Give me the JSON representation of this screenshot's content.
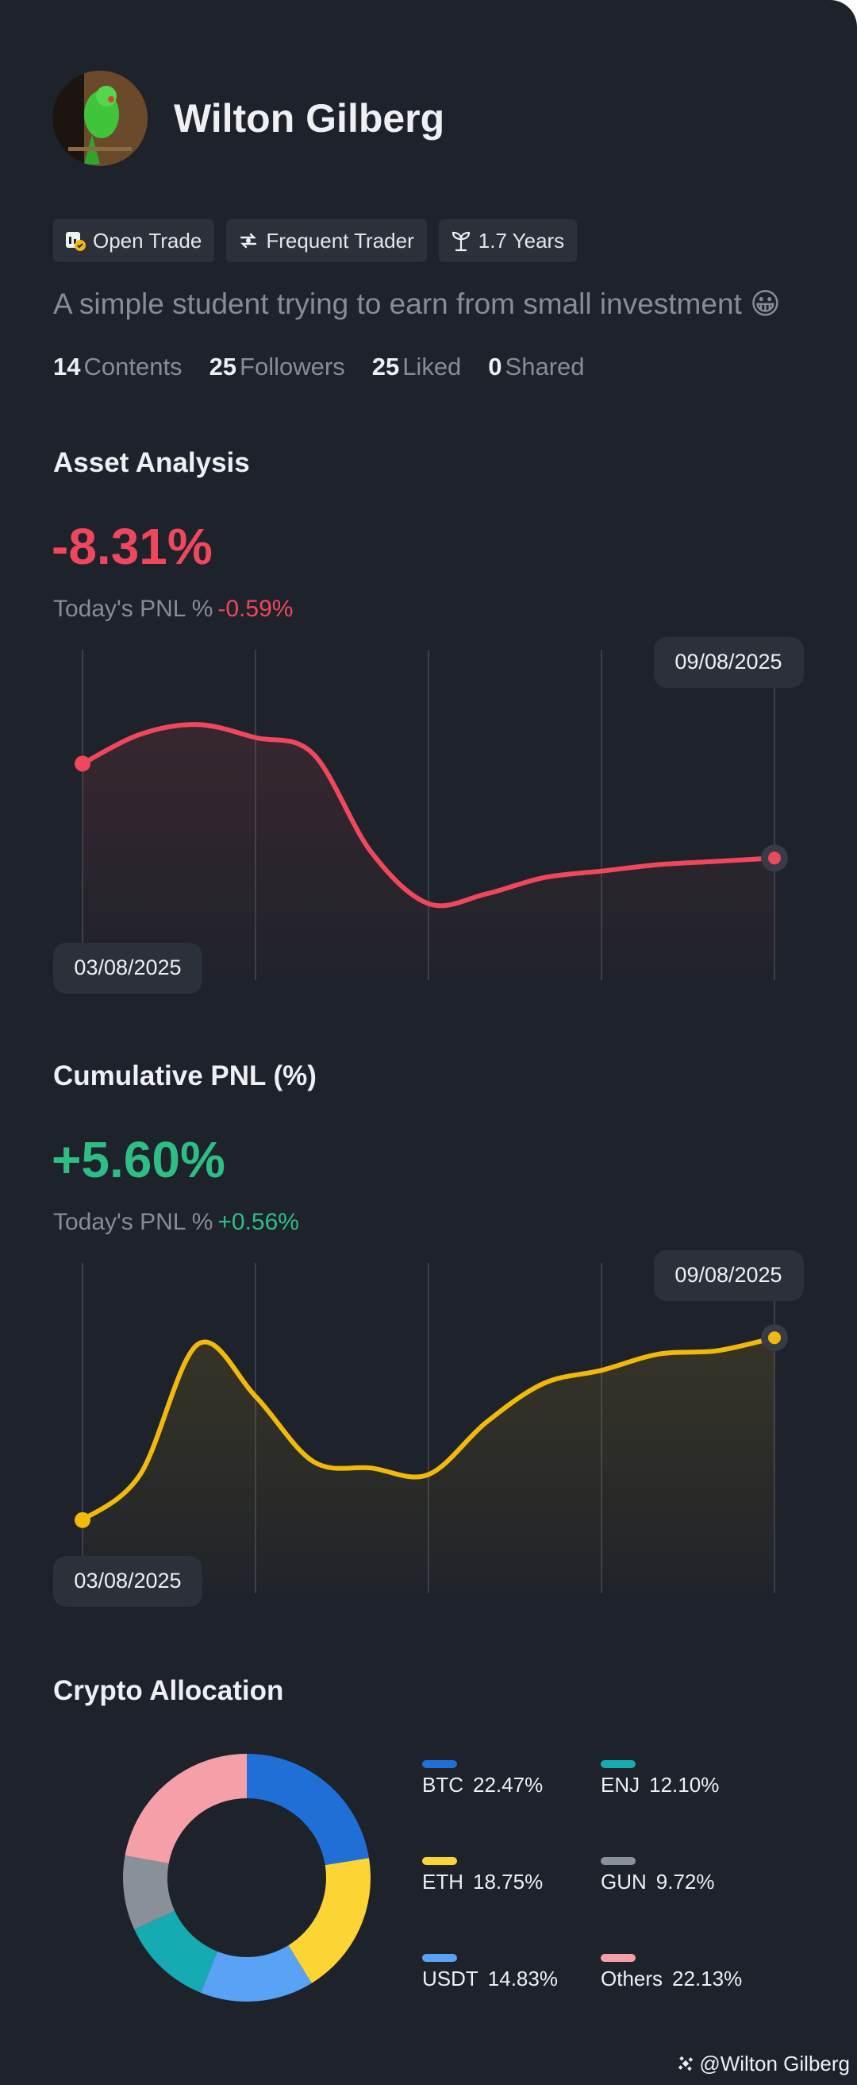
{
  "profile": {
    "name": "Wilton Gilberg",
    "badges": [
      "Open Trade",
      "Frequent Trader",
      "1.7 Years"
    ],
    "bio": "A simple student trying to earn from small investment 😀",
    "stats": [
      {
        "count": 14,
        "label": "Contents"
      },
      {
        "count": 25,
        "label": "Followers"
      },
      {
        "count": 25,
        "label": "Liked"
      },
      {
        "count": 0,
        "label": "Shared"
      }
    ]
  },
  "sections": [
    {
      "title": "Asset Analysis",
      "headline": "-8.31%",
      "pnl_label": "Today's PNL %",
      "pnl_value": "-0.59%",
      "accent": "#f0475c",
      "chart_data": {
        "type": "line",
        "categories": [
          "03/08/2025",
          null,
          null,
          null,
          null,
          null,
          null,
          null,
          null,
          null,
          null,
          null,
          "09/08/2025"
        ],
        "series": [
          {
            "color": "#f0475c",
            "values": [
              66,
              75,
              78,
              74,
              69,
              39,
              23,
              26,
              31,
              33,
              35,
              36,
              37
            ]
          }
        ],
        "ylim": [
          0,
          100
        ]
      }
    },
    {
      "title": "Cumulative PNL (%)",
      "headline": "+5.60%",
      "pnl_label": "Today's PNL %",
      "pnl_value": "+0.56%",
      "accent": "#2ebd85",
      "chart_data": {
        "type": "line",
        "categories": [
          "03/08/2025",
          null,
          null,
          null,
          null,
          null,
          null,
          null,
          null,
          null,
          null,
          null,
          "09/08/2025"
        ],
        "series": [
          {
            "color": "#f0b90b",
            "values": [
              22,
              36,
              76,
              60,
              40,
              38,
              36,
              52,
              64,
              68,
              73,
              74,
              78
            ]
          }
        ],
        "ylim": [
          0,
          100
        ]
      }
    }
  ],
  "allocation": {
    "title": "Crypto Allocation",
    "chart_data": {
      "type": "pie",
      "categories": [
        "BTC",
        "ETH",
        "USDT",
        "ENJ",
        "GUN",
        "Others"
      ],
      "values": [
        22.47,
        18.75,
        14.83,
        12.1,
        9.72,
        22.13
      ],
      "value_labels": [
        "22.47%",
        "18.75%",
        "14.83%",
        "12.10%",
        "9.72%",
        "22.13%"
      ],
      "colors": [
        "#1f6fd6",
        "#fcd535",
        "#5aa2f5",
        "#16aab3",
        "#8a9099",
        "#f5a0a8"
      ]
    }
  },
  "watermark": "@Wilton Gilberg"
}
